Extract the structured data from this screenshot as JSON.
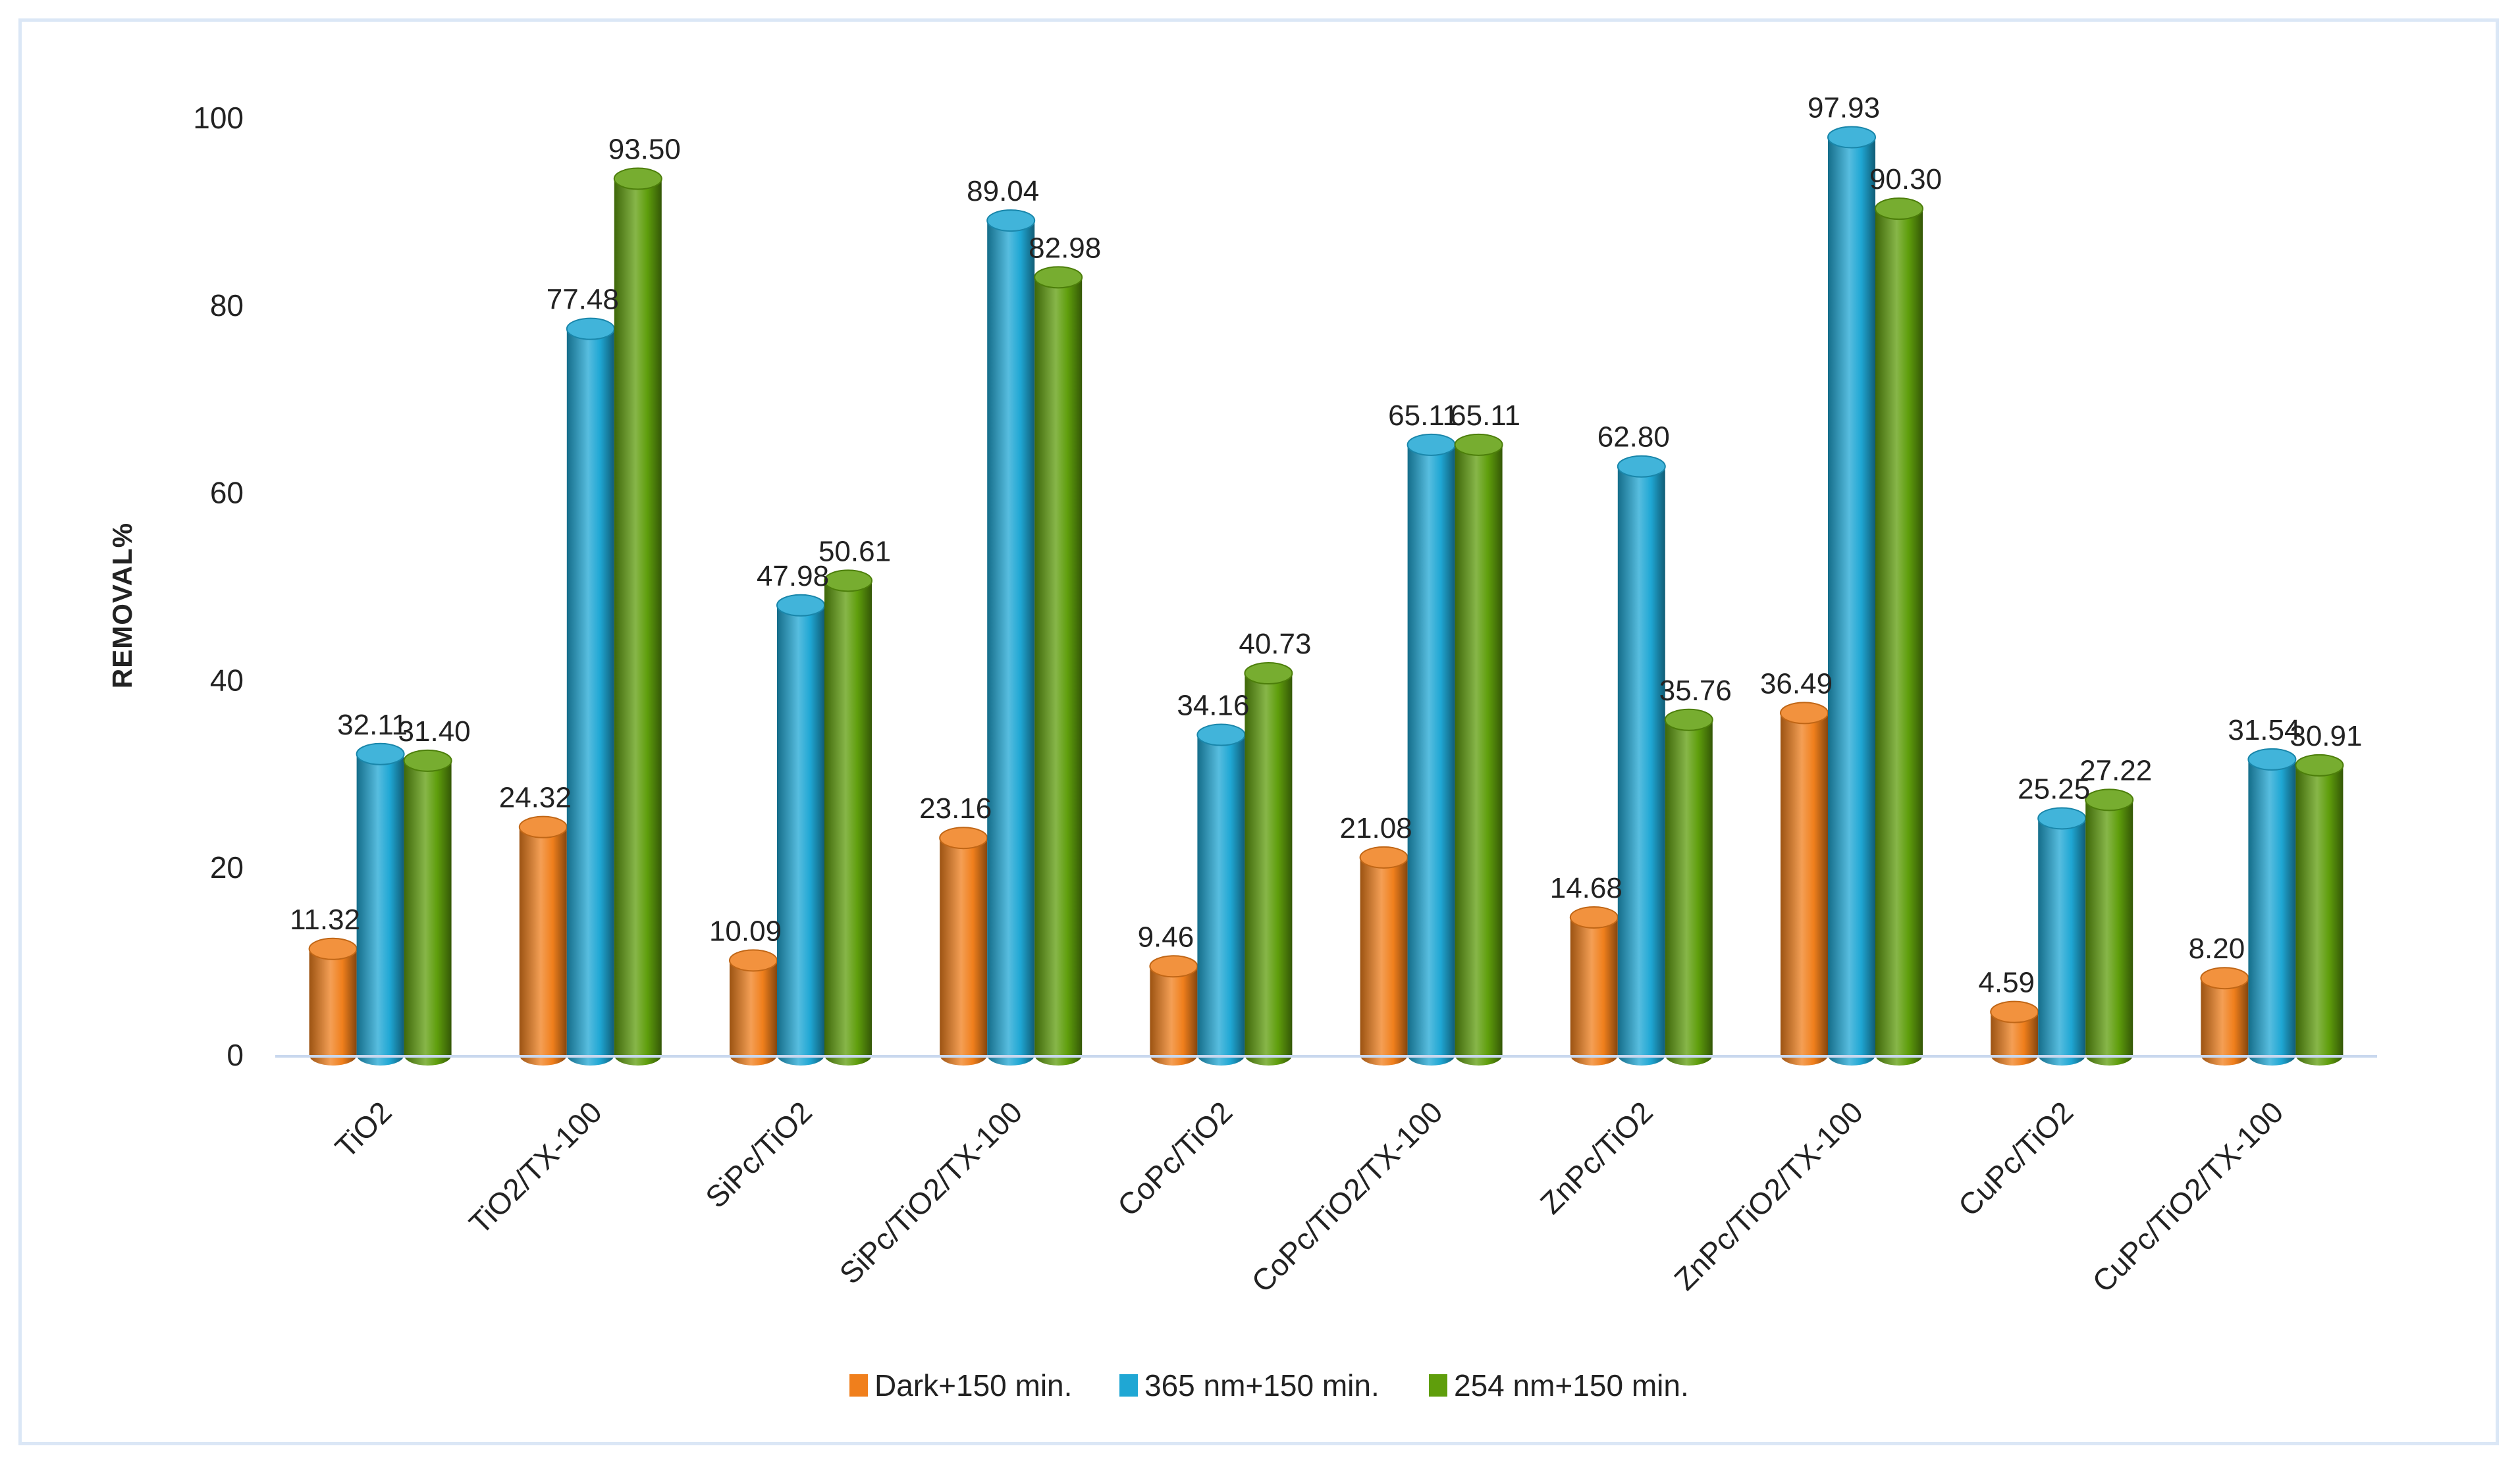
{
  "chart_data": {
    "type": "bar",
    "title": "",
    "xlabel": "",
    "ylabel": "REMOVAL%",
    "ylim": [
      0,
      100
    ],
    "yticks": [
      "0",
      "20",
      "40",
      "60",
      "80",
      "100"
    ],
    "categories": [
      "TiO2",
      "TiO2/TX-100",
      "SiPc/TiO2",
      "SiPc/TiO2/TX-100",
      "CoPc/TiO2",
      "CoPc/TiO2/TX-100",
      "ZnPc/TiO2",
      "ZnPc/TiO2/TX-100",
      "CuPc/TiO2",
      "CuPc/TiO2/TX-100"
    ],
    "series": [
      {
        "name": "Dark+150 min.",
        "color": "#f07f1c",
        "values": [
          11.32,
          24.32,
          10.09,
          23.16,
          9.46,
          21.08,
          14.68,
          36.49,
          4.59,
          8.2
        ],
        "labels": [
          "11.32",
          "24.32",
          "10.09",
          "23.16",
          "9.46",
          "21.08",
          "14.68",
          "36.49",
          "4.59",
          "8.20"
        ]
      },
      {
        "name": "365 nm+150 min.",
        "color": "#1fa7d4",
        "values": [
          32.11,
          77.48,
          47.98,
          89.04,
          34.16,
          65.11,
          62.8,
          97.93,
          25.25,
          31.54
        ],
        "labels": [
          "32.11",
          "77.48",
          "47.98",
          "89.04",
          "34.16",
          "65.11",
          "62.80",
          "97.93",
          "25.25",
          "31.54"
        ]
      },
      {
        "name": "254 nm+150 min.",
        "color": "#5f9e0c",
        "values": [
          31.4,
          93.5,
          50.61,
          82.98,
          40.73,
          65.11,
          35.76,
          90.3,
          27.22,
          30.91
        ],
        "labels": [
          "31.40",
          "93.50",
          "50.61",
          "82.98",
          "40.73",
          "65.11",
          "35.76",
          "90.30",
          "27.22",
          "30.91"
        ]
      }
    ],
    "legend_position": "bottom",
    "grid": false
  }
}
